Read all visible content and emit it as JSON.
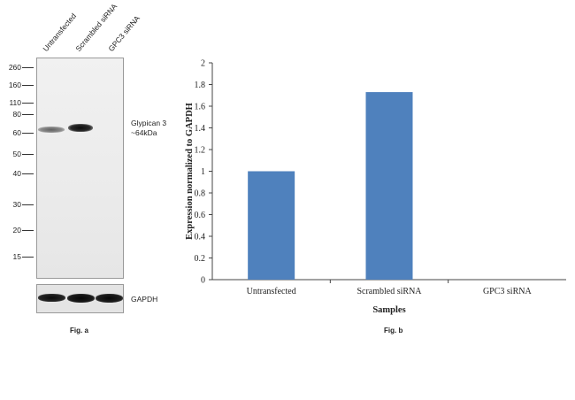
{
  "blot": {
    "lanes": [
      "Untransfected",
      "Scrambled siRNA",
      "GPC3 siRNA"
    ],
    "markers": [
      "260",
      "160",
      "110",
      "80",
      "60",
      "50",
      "40",
      "30",
      "20",
      "15"
    ],
    "target_label": [
      "Glypican 3",
      "~64kDa"
    ],
    "loading_control": "GAPDH",
    "caption": "Fig. a"
  },
  "chart_data": {
    "type": "bar",
    "title": "",
    "categories": [
      "Untransfected",
      "Scrambled siRNA",
      "GPC3 siRNA"
    ],
    "values": [
      1.0,
      1.73,
      0.0
    ],
    "xlabel": "Samples",
    "ylabel": "Expression normalized to GAPDH",
    "ylim": [
      0,
      2
    ],
    "yticks": [
      0,
      0.2,
      0.4,
      0.6,
      0.8,
      1,
      1.2,
      1.4,
      1.6,
      1.8,
      2
    ],
    "ytick_labels": [
      "0",
      "0.2",
      "0.4",
      "0.6",
      "0.8",
      "1",
      "1.2",
      "1.4",
      "1.6",
      "1.8",
      "2"
    ],
    "bar_color": "#4f81bd",
    "grid": false,
    "legend": "none",
    "caption": "Fig. b"
  }
}
